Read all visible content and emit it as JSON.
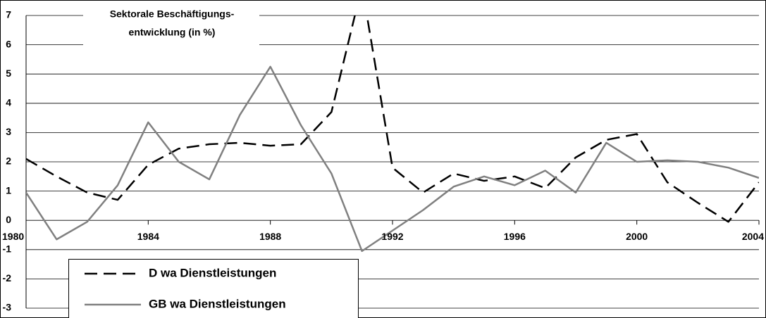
{
  "chart_data": {
    "type": "line",
    "title": [
      "Sektorale Beschäftigungs-",
      "entwicklung (in %)"
    ],
    "x": [
      1980,
      1981,
      1982,
      1983,
      1984,
      1985,
      1986,
      1987,
      1988,
      1989,
      1990,
      1991,
      1992,
      1993,
      1994,
      1995,
      1996,
      1997,
      1998,
      1999,
      2000,
      2001,
      2002,
      2003,
      2004
    ],
    "series": [
      {
        "name": "D wa Dienstleistungen",
        "color": "#000000",
        "dash": true,
        "values": [
          2.1,
          1.5,
          0.95,
          0.7,
          1.9,
          2.45,
          2.6,
          2.65,
          2.55,
          2.6,
          3.7,
          8,
          1.8,
          0.95,
          1.6,
          1.35,
          1.5,
          1.1,
          2.15,
          2.75,
          2.95,
          1.3,
          0.6,
          -0.05,
          1.3
        ]
      },
      {
        "name": "GB wa Dienstleistungen",
        "color": "#808080",
        "dash": false,
        "values": [
          0.95,
          -0.65,
          -0.05,
          1.2,
          3.35,
          2.0,
          1.4,
          3.6,
          5.25,
          3.25,
          1.6,
          -1.05,
          -0.35,
          0.35,
          1.15,
          1.5,
          1.2,
          1.7,
          0.95,
          2.65,
          2.0,
          2.05,
          2.0,
          1.8,
          1.45
        ]
      }
    ],
    "xlim": [
      1980,
      2004
    ],
    "xticks": [
      1980,
      1984,
      1988,
      1992,
      1996,
      2000,
      2004
    ],
    "ylim": [
      -3,
      7
    ],
    "yticks": [
      -3,
      -2,
      -1,
      0,
      1,
      2,
      3,
      4,
      5,
      6,
      7
    ],
    "grid": true,
    "legend": "lower left"
  }
}
